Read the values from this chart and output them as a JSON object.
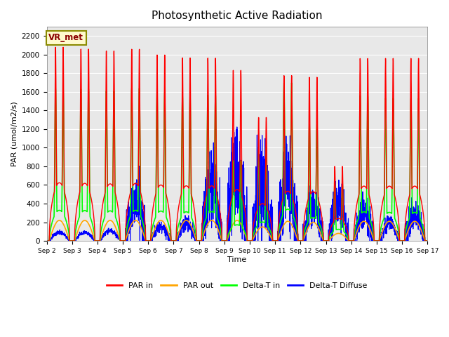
{
  "title": "Photosynthetic Active Radiation",
  "ylabel": "PAR (umol/m2/s)",
  "xlabel": "Time",
  "ylim": [
    0,
    2300
  ],
  "label_box": "VR_met",
  "legend_labels": [
    "PAR in",
    "PAR out",
    "Delta-T in",
    "Delta-T Diffuse"
  ],
  "colors": [
    "red",
    "orange",
    "lime",
    "blue"
  ],
  "plot_bg": "#e8e8e8",
  "x_tick_labels": [
    "Sep 2",
    "Sep 3",
    "Sep 4",
    "Sep 5",
    "Sep 6",
    "Sep 7",
    "Sep 8",
    "Sep 9",
    "Sep 10",
    "Sep 11",
    "Sep 12",
    "Sep 13",
    "Sep 14",
    "Sep 15",
    "Sep 16",
    "Sep 17"
  ],
  "day_peaks_par_in": [
    2080,
    2060,
    2040,
    2060,
    2000,
    1970,
    1970,
    1840,
    1330,
    1780,
    1760,
    800,
    1960,
    1960,
    1960
  ],
  "day_peaks_par_out": [
    220,
    220,
    220,
    220,
    220,
    220,
    220,
    220,
    150,
    210,
    200,
    80,
    210,
    210,
    210
  ],
  "day_peaks_delta_in": [
    1640,
    1630,
    1610,
    1640,
    1600,
    1560,
    1570,
    860,
    1010,
    1700,
    1250,
    620,
    1560,
    1530,
    1530
  ],
  "day_peaks_delta_diffuse": [
    90,
    90,
    110,
    410,
    150,
    190,
    620,
    750,
    670,
    650,
    350,
    400,
    300,
    190,
    290
  ],
  "day_noise_diffuse": [
    0.3,
    0.3,
    0.3,
    0.8,
    0.5,
    0.5,
    0.9,
    0.9,
    0.9,
    0.9,
    0.8,
    0.8,
    0.7,
    0.5,
    0.7
  ]
}
